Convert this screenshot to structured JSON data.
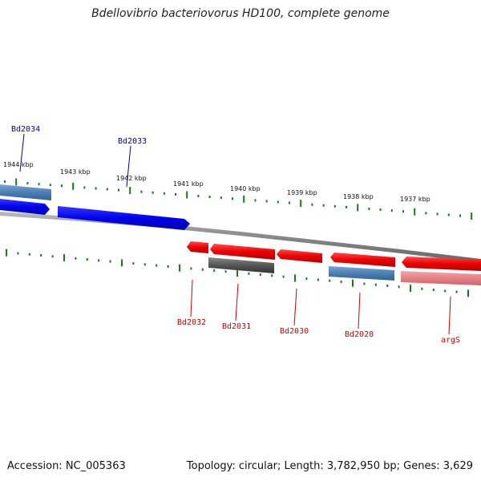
{
  "title": "Bdellovibrio bacteriovorus HD100, complete genome",
  "footer": {
    "accession": "Accession: NC_005363",
    "summary": "Topology: circular; Length: 3,782,950 bp; Genes: 3,629"
  },
  "colors": {
    "forward_gene": "#0000ee",
    "reverse_gene": "#ee0000",
    "reverse_gene_light": "#e77f86",
    "steelblue_gene": "#4a7fb5",
    "gray_gene": "#555555",
    "backbone": "#888888",
    "ticks": "#1a7a1a",
    "forward_label": "#000099",
    "reverse_label": "#cc0000"
  },
  "scale_labels": [
    {
      "text": "1944 kbp"
    },
    {
      "text": "1943 kbp"
    },
    {
      "text": "1942 kbp"
    },
    {
      "text": "1941 kbp"
    },
    {
      "text": "1940 kbp"
    },
    {
      "text": "1939 kbp"
    },
    {
      "text": "1938 kbp"
    },
    {
      "text": "1937 kbp"
    }
  ],
  "gene_labels": [
    {
      "name": "Bd2034",
      "strand": "forward"
    },
    {
      "name": "Bd2033",
      "strand": "forward"
    },
    {
      "name": "Bd2032",
      "strand": "reverse"
    },
    {
      "name": "Bd2031",
      "strand": "reverse"
    },
    {
      "name": "Bd2030",
      "strand": "reverse"
    },
    {
      "name": "Bd2028",
      "strand": "reverse"
    },
    {
      "name": "argS",
      "strand": "reverse"
    }
  ]
}
